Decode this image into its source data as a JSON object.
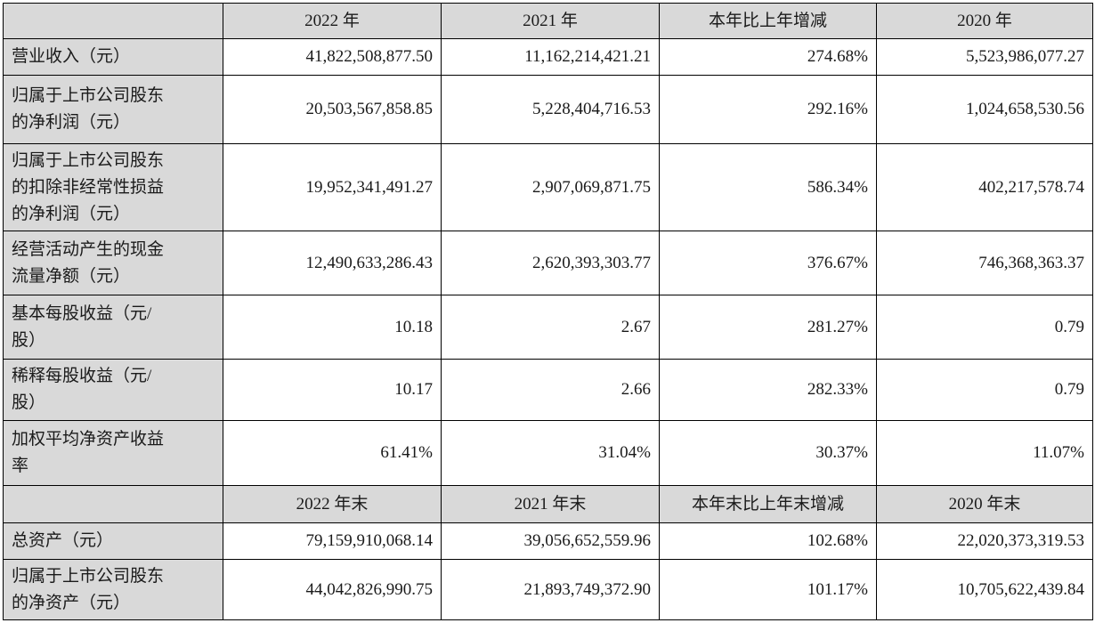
{
  "header1": [
    "2022 年",
    "2021 年",
    "本年比上年增减",
    "2020 年"
  ],
  "rows1": [
    {
      "label": [
        "营业收入（元）"
      ],
      "values": [
        "41,822,508,877.50",
        "11,162,214,421.21",
        "274.68%",
        "5,523,986,077.27"
      ]
    },
    {
      "label": [
        "归属于上市公司股东",
        "的净利润（元）"
      ],
      "values": [
        "20,503,567,858.85",
        "5,228,404,716.53",
        "292.16%",
        "1,024,658,530.56"
      ]
    },
    {
      "label": [
        "归属于上市公司股东",
        "的扣除非经常性损益",
        "的净利润（元）"
      ],
      "values": [
        "19,952,341,491.27",
        "2,907,069,871.75",
        "586.34%",
        "402,217,578.74"
      ]
    },
    {
      "label": [
        "经营活动产生的现金",
        "流量净额（元）"
      ],
      "values": [
        "12,490,633,286.43",
        "2,620,393,303.77",
        "376.67%",
        "746,368,363.37"
      ]
    },
    {
      "label": [
        "基本每股收益（元/",
        "股）"
      ],
      "values": [
        "10.18",
        "2.67",
        "281.27%",
        "0.79"
      ]
    },
    {
      "label": [
        "稀释每股收益（元/",
        "股）"
      ],
      "values": [
        "10.17",
        "2.66",
        "282.33%",
        "0.79"
      ]
    },
    {
      "label": [
        "加权平均净资产收益",
        "率"
      ],
      "values": [
        "61.41%",
        "31.04%",
        "30.37%",
        "11.07%"
      ]
    }
  ],
  "header2": [
    "2022 年末",
    "2021 年末",
    "本年末比上年末增减",
    "2020 年末"
  ],
  "rows2": [
    {
      "label": [
        "总资产（元）"
      ],
      "values": [
        "79,159,910,068.14",
        "39,056,652,559.96",
        "102.68%",
        "22,020,373,319.53"
      ]
    },
    {
      "label": [
        "归属于上市公司股东",
        "的净资产（元）"
      ],
      "values": [
        "44,042,826,990.75",
        "21,893,749,372.90",
        "101.17%",
        "10,705,622,439.84"
      ]
    }
  ]
}
